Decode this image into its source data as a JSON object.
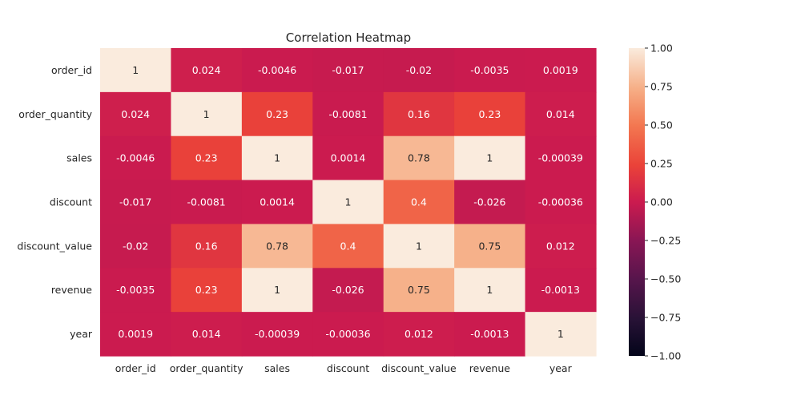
{
  "chart_data": {
    "type": "heatmap",
    "title": "Correlation Heatmap",
    "xlabel": "",
    "ylabel": "",
    "x_categories": [
      "order_id",
      "order_quantity",
      "sales",
      "discount",
      "discount_value",
      "revenue",
      "year"
    ],
    "y_categories": [
      "order_id",
      "order_quantity",
      "sales",
      "discount",
      "discount_value",
      "revenue",
      "year"
    ],
    "values": [
      [
        1,
        0.024,
        -0.0046,
        -0.017,
        -0.02,
        -0.0035,
        0.0019
      ],
      [
        0.024,
        1,
        0.23,
        -0.0081,
        0.16,
        0.23,
        0.014
      ],
      [
        -0.0046,
        0.23,
        1,
        0.0014,
        0.78,
        1,
        -0.00039
      ],
      [
        -0.017,
        -0.0081,
        0.0014,
        1,
        0.4,
        -0.026,
        -0.00036
      ],
      [
        -0.02,
        0.16,
        0.78,
        0.4,
        1,
        0.75,
        0.012
      ],
      [
        -0.0035,
        0.23,
        1,
        -0.026,
        0.75,
        1,
        -0.0013
      ],
      [
        0.0019,
        0.014,
        -0.00039,
        -0.00036,
        0.012,
        -0.0013,
        1
      ]
    ],
    "value_labels": [
      [
        "1",
        "0.024",
        "-0.0046",
        "-0.017",
        "-0.02",
        "-0.0035",
        "0.0019"
      ],
      [
        "0.024",
        "1",
        "0.23",
        "-0.0081",
        "0.16",
        "0.23",
        "0.014"
      ],
      [
        "-0.0046",
        "0.23",
        "1",
        "0.0014",
        "0.78",
        "1",
        "-0.00039"
      ],
      [
        "-0.017",
        "-0.0081",
        "0.0014",
        "1",
        "0.4",
        "-0.026",
        "-0.00036"
      ],
      [
        "-0.02",
        "0.16",
        "0.78",
        "0.4",
        "1",
        "0.75",
        "0.012"
      ],
      [
        "-0.0035",
        "0.23",
        "1",
        "-0.026",
        "0.75",
        "1",
        "-0.0013"
      ],
      [
        "0.0019",
        "0.014",
        "-0.00039",
        "-0.00036",
        "0.012",
        "-0.0013",
        "1"
      ]
    ],
    "colorbar": {
      "vmin": -1,
      "vmax": 1,
      "ticks": [
        1.0,
        0.75,
        0.5,
        0.25,
        0.0,
        -0.25,
        -0.5,
        -0.75,
        -1.0
      ],
      "tick_labels": [
        "1.00",
        "0.75",
        "0.50",
        "0.25",
        "0.00",
        "−0.25",
        "−0.50",
        "−0.75",
        "−1.00"
      ],
      "colormap": "rocket"
    },
    "annotations": true,
    "grid": false,
    "legend": "colorbar-right"
  }
}
